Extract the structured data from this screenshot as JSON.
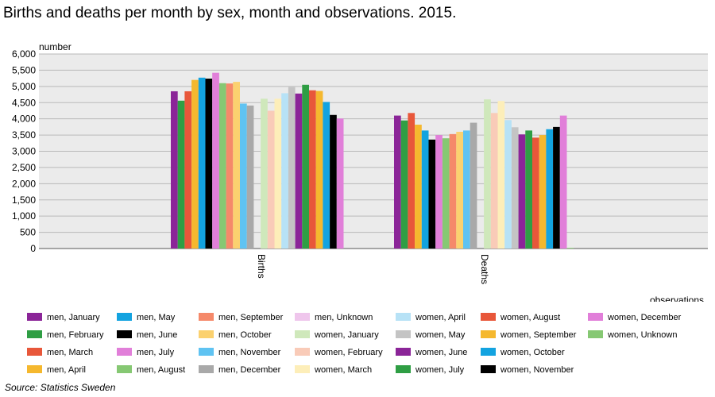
{
  "chart_data": {
    "type": "bar",
    "title": "Births and deaths per month by sex, month and observations. 2015.",
    "ylabel": "number",
    "xlabel": "observations",
    "source": "Source: Statistics Sweden",
    "ylim": [
      0,
      6000
    ],
    "yticks": [
      "0",
      "500",
      "1,000",
      "1,500",
      "2,000",
      "2,500",
      "3,000",
      "3,500",
      "4,000",
      "4,500",
      "5,000",
      "5,500",
      "6,000"
    ],
    "grid": true,
    "legend_position": "bottom",
    "categories": [
      "Births",
      "Deaths"
    ],
    "series": [
      {
        "name": "men, January",
        "color": "#8b2598",
        "values": [
          4850,
          4100
        ]
      },
      {
        "name": "men, February",
        "color": "#2f9e44",
        "values": [
          4560,
          3950
        ]
      },
      {
        "name": "men, March",
        "color": "#e8573a",
        "values": [
          4850,
          4180
        ]
      },
      {
        "name": "men, April",
        "color": "#f5b82e",
        "values": [
          5200,
          3820
        ]
      },
      {
        "name": "men, May",
        "color": "#13a3e0",
        "values": [
          5270,
          3640
        ]
      },
      {
        "name": "men, June",
        "color": "#000000",
        "values": [
          5240,
          3360
        ]
      },
      {
        "name": "men, July",
        "color": "#e17fd9",
        "values": [
          5420,
          3500
        ]
      },
      {
        "name": "men, August",
        "color": "#86c873",
        "values": [
          5100,
          3400
        ]
      },
      {
        "name": "men, September",
        "color": "#f5896a",
        "values": [
          5090,
          3530
        ]
      },
      {
        "name": "men, October",
        "color": "#fbd16f",
        "values": [
          5140,
          3600
        ]
      },
      {
        "name": "men, November",
        "color": "#5fc3f2",
        "values": [
          4470,
          3640
        ]
      },
      {
        "name": "men, December",
        "color": "#a9a9a9",
        "values": [
          4410,
          3880
        ]
      },
      {
        "name": "men, Unknown",
        "color": "#efc6ec",
        "values": [
          0,
          0
        ]
      },
      {
        "name": "women, January",
        "color": "#cfe8bb",
        "values": [
          4620,
          4600
        ]
      },
      {
        "name": "women, February",
        "color": "#f9cbb8",
        "values": [
          4250,
          4180
        ]
      },
      {
        "name": "women, March",
        "color": "#fdeeb9",
        "values": [
          4620,
          4550
        ]
      },
      {
        "name": "women, April",
        "color": "#b7e2f6",
        "values": [
          4790,
          3960
        ]
      },
      {
        "name": "women, May",
        "color": "#c4c4c4",
        "values": [
          4980,
          3740
        ]
      },
      {
        "name": "women, June",
        "color": "#8b2598",
        "values": [
          4780,
          3520
        ]
      },
      {
        "name": "women, July",
        "color": "#2f9e44",
        "values": [
          5050,
          3640
        ]
      },
      {
        "name": "women, August",
        "color": "#e8573a",
        "values": [
          4880,
          3420
        ]
      },
      {
        "name": "women, September",
        "color": "#f5b82e",
        "values": [
          4860,
          3500
        ]
      },
      {
        "name": "women, October",
        "color": "#13a3e0",
        "values": [
          4520,
          3680
        ]
      },
      {
        "name": "women, November",
        "color": "#000000",
        "values": [
          4120,
          3750
        ]
      },
      {
        "name": "women, December",
        "color": "#e17fd9",
        "values": [
          4010,
          4100
        ]
      },
      {
        "name": "women, Unknown",
        "color": "#86c873",
        "values": [
          0,
          20
        ]
      }
    ]
  }
}
